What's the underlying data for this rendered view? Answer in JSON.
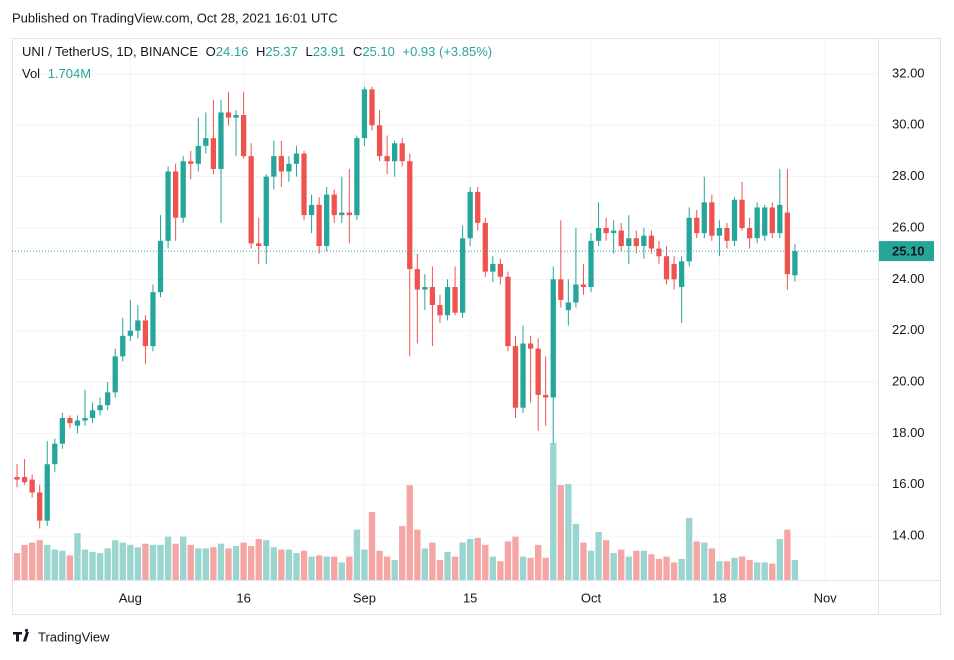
{
  "page": {
    "published": "Published on TradingView.com, Oct 28, 2021 16:01 UTC",
    "brand": "TradingView"
  },
  "chart_data": {
    "type": "candlestick",
    "legend": {
      "symbol": "UNI / TetherUS, 1D, BINANCE",
      "o": "O",
      "o_value": "24.16",
      "h": "H",
      "h_value": "25.37",
      "l": "L",
      "l_value": "23.91",
      "c": "C",
      "c_value": "25.10",
      "change": "+0.93 (+3.85%)",
      "vol": "Vol",
      "vol_value": "1.704M"
    },
    "last_price_label": "25.10",
    "up_color": "#26a69a",
    "down_color": "#ef5350",
    "up_volume_color": "#9bd5cf",
    "down_volume_color": "#f5a6a4",
    "x": [
      "2021-07-17",
      "2021-07-18",
      "2021-07-19",
      "2021-07-20",
      "2021-07-21",
      "2021-07-22",
      "2021-07-23",
      "2021-07-24",
      "2021-07-25",
      "2021-07-26",
      "2021-07-27",
      "2021-07-28",
      "2021-07-29",
      "2021-07-30",
      "2021-07-31",
      "2021-08-01",
      "2021-08-02",
      "2021-08-03",
      "2021-08-04",
      "2021-08-05",
      "2021-08-06",
      "2021-08-07",
      "2021-08-08",
      "2021-08-09",
      "2021-08-10",
      "2021-08-11",
      "2021-08-12",
      "2021-08-13",
      "2021-08-14",
      "2021-08-15",
      "2021-08-16",
      "2021-08-17",
      "2021-08-18",
      "2021-08-19",
      "2021-08-20",
      "2021-08-21",
      "2021-08-22",
      "2021-08-23",
      "2021-08-24",
      "2021-08-25",
      "2021-08-26",
      "2021-08-27",
      "2021-08-28",
      "2021-08-29",
      "2021-08-30",
      "2021-08-31",
      "2021-09-01",
      "2021-09-02",
      "2021-09-03",
      "2021-09-04",
      "2021-09-05",
      "2021-09-06",
      "2021-09-07",
      "2021-09-08",
      "2021-09-09",
      "2021-09-10",
      "2021-09-11",
      "2021-09-12",
      "2021-09-13",
      "2021-09-14",
      "2021-09-15",
      "2021-09-16",
      "2021-09-17",
      "2021-09-18",
      "2021-09-19",
      "2021-09-20",
      "2021-09-21",
      "2021-09-22",
      "2021-09-23",
      "2021-09-24",
      "2021-09-25",
      "2021-09-26",
      "2021-09-27",
      "2021-09-28",
      "2021-09-29",
      "2021-09-30",
      "2021-10-01",
      "2021-10-02",
      "2021-10-03",
      "2021-10-04",
      "2021-10-05",
      "2021-10-06",
      "2021-10-07",
      "2021-10-08",
      "2021-10-09",
      "2021-10-10",
      "2021-10-11",
      "2021-10-12",
      "2021-10-13",
      "2021-10-14",
      "2021-10-15",
      "2021-10-16",
      "2021-10-17",
      "2021-10-18",
      "2021-10-19",
      "2021-10-20",
      "2021-10-21",
      "2021-10-22",
      "2021-10-23",
      "2021-10-24",
      "2021-10-25",
      "2021-10-26",
      "2021-10-27",
      "2021-10-28"
    ],
    "open": [
      16.3,
      16.3,
      16.2,
      15.7,
      14.6,
      16.8,
      17.6,
      18.6,
      18.3,
      18.5,
      18.6,
      18.9,
      19.1,
      19.6,
      21.0,
      21.8,
      22.0,
      22.4,
      21.4,
      23.5,
      25.5,
      28.2,
      26.4,
      28.6,
      28.5,
      29.2,
      29.5,
      28.3,
      30.5,
      30.3,
      30.4,
      28.8,
      25.4,
      25.3,
      28.0,
      28.8,
      28.2,
      28.5,
      28.9,
      26.5,
      26.9,
      25.3,
      27.3,
      26.5,
      26.6,
      26.5,
      29.5,
      31.4,
      30.0,
      28.8,
      28.6,
      29.3,
      28.6,
      24.4,
      23.6,
      23.7,
      23.0,
      22.6,
      23.7,
      22.7,
      25.6,
      27.4,
      26.2,
      24.3,
      24.6,
      24.1,
      21.4,
      19.0,
      21.5,
      21.3,
      19.5,
      19.4,
      24.0,
      22.8,
      23.1,
      23.8,
      23.7,
      25.5,
      26.0,
      25.8,
      25.9,
      25.3,
      25.6,
      25.3,
      25.7,
      25.2,
      24.9,
      24.6,
      23.7,
      24.7,
      26.4,
      25.8,
      27.0,
      25.7,
      26.0,
      25.5,
      27.1,
      26.0,
      25.6,
      25.7,
      26.8,
      25.8,
      26.6,
      24.16
    ],
    "high": [
      16.8,
      17.0,
      16.4,
      16.0,
      17.7,
      17.8,
      18.8,
      18.7,
      18.7,
      19.7,
      19.2,
      19.4,
      20.0,
      21.3,
      22.5,
      23.2,
      23.0,
      22.6,
      23.8,
      26.5,
      28.4,
      28.5,
      28.8,
      29.0,
      30.3,
      30.5,
      31.0,
      31.0,
      31.3,
      30.6,
      31.3,
      29.3,
      26.4,
      28.1,
      29.4,
      29.4,
      28.8,
      29.2,
      29.0,
      27.3,
      27.2,
      27.6,
      27.5,
      28.0,
      28.3,
      29.6,
      31.5,
      31.5,
      30.6,
      29.6,
      29.4,
      29.5,
      28.9,
      25.0,
      24.2,
      24.5,
      23.4,
      24.0,
      24.5,
      26.1,
      27.6,
      27.6,
      26.4,
      24.9,
      24.8,
      24.3,
      21.8,
      22.2,
      21.8,
      21.7,
      21.0,
      24.5,
      26.3,
      24.0,
      26.0,
      24.6,
      25.8,
      27.0,
      26.4,
      26.3,
      26.2,
      26.5,
      25.9,
      26.0,
      25.9,
      25.5,
      25.3,
      24.9,
      24.9,
      26.8,
      26.7,
      28.0,
      27.3,
      26.3,
      26.2,
      27.2,
      27.8,
      26.4,
      27.0,
      26.9,
      27.0,
      28.3,
      28.3,
      25.37
    ],
    "low": [
      15.9,
      16.0,
      15.5,
      14.3,
      14.4,
      16.5,
      17.4,
      18.2,
      18.0,
      18.3,
      18.4,
      18.7,
      18.9,
      19.4,
      20.8,
      21.6,
      21.7,
      20.7,
      21.2,
      23.3,
      25.2,
      25.5,
      26.2,
      27.9,
      28.2,
      28.9,
      28.1,
      26.2,
      30.0,
      28.8,
      28.7,
      25.2,
      24.6,
      24.6,
      27.5,
      27.6,
      27.8,
      28.0,
      26.3,
      25.8,
      25.0,
      25.1,
      26.2,
      26.2,
      25.4,
      26.3,
      29.2,
      29.8,
      28.6,
      28.1,
      28.0,
      28.4,
      21.0,
      21.5,
      22.8,
      21.4,
      22.3,
      22.4,
      22.6,
      22.5,
      25.3,
      25.9,
      24.1,
      23.9,
      23.8,
      21.2,
      18.6,
      18.8,
      19.2,
      18.1,
      18.3,
      17.6,
      22.9,
      22.2,
      22.9,
      23.4,
      23.5,
      25.3,
      25.5,
      25.0,
      25.1,
      24.6,
      25.0,
      24.8,
      25.0,
      24.6,
      23.8,
      23.6,
      22.3,
      24.5,
      25.6,
      25.6,
      25.5,
      24.9,
      25.2,
      25.3,
      25.9,
      25.2,
      25.4,
      25.5,
      25.6,
      25.6,
      23.6,
      23.91
    ],
    "close": [
      16.2,
      16.1,
      15.7,
      14.6,
      16.8,
      17.6,
      18.6,
      18.4,
      18.5,
      18.6,
      18.9,
      19.1,
      19.6,
      21.0,
      21.8,
      22.0,
      22.4,
      21.4,
      23.5,
      25.5,
      28.2,
      26.4,
      28.6,
      28.5,
      29.2,
      29.5,
      28.3,
      30.5,
      30.3,
      30.4,
      28.8,
      25.4,
      25.3,
      28.0,
      28.8,
      28.2,
      28.5,
      28.9,
      26.5,
      26.9,
      25.3,
      27.3,
      26.5,
      26.6,
      26.5,
      29.5,
      31.4,
      30.0,
      28.8,
      28.6,
      29.3,
      28.6,
      24.4,
      23.6,
      23.7,
      23.0,
      22.6,
      23.7,
      22.7,
      25.6,
      27.4,
      26.2,
      24.3,
      24.6,
      24.1,
      21.4,
      19.0,
      21.5,
      21.3,
      19.5,
      19.4,
      24.0,
      23.2,
      23.1,
      23.8,
      23.7,
      25.5,
      26.0,
      25.8,
      25.9,
      25.3,
      25.6,
      25.3,
      25.7,
      25.2,
      24.9,
      24.0,
      24.0,
      24.7,
      26.4,
      25.8,
      27.0,
      25.7,
      26.0,
      25.5,
      27.1,
      26.0,
      25.6,
      26.8,
      26.8,
      25.8,
      26.9,
      24.2,
      25.1
    ],
    "volume": [
      2.3,
      3.0,
      3.2,
      3.4,
      3.0,
      2.6,
      2.5,
      2.1,
      4.0,
      2.6,
      2.4,
      2.3,
      2.7,
      3.4,
      3.2,
      3.0,
      2.8,
      3.1,
      3.0,
      3.0,
      3.7,
      3.1,
      3.7,
      3.0,
      2.7,
      2.7,
      2.8,
      3.1,
      2.7,
      2.9,
      3.2,
      2.9,
      3.5,
      3.4,
      2.8,
      2.6,
      2.6,
      2.3,
      2.5,
      2.0,
      2.1,
      2.0,
      2.0,
      1.5,
      2.0,
      4.3,
      2.6,
      5.8,
      2.5,
      2.0,
      1.7,
      4.6,
      8.1,
      4.3,
      2.7,
      3.2,
      1.7,
      2.4,
      2.0,
      3.2,
      3.5,
      3.6,
      3.0,
      2.0,
      1.6,
      3.3,
      3.7,
      2.0,
      1.9,
      3.0,
      1.9,
      11.7,
      8.1,
      8.2,
      4.8,
      3.2,
      2.5,
      4.1,
      3.4,
      2.3,
      2.6,
      2.0,
      2.5,
      2.5,
      2.2,
      1.8,
      2.0,
      1.5,
      1.8,
      5.3,
      3.3,
      3.2,
      2.7,
      1.6,
      1.6,
      1.9,
      2.0,
      1.7,
      1.5,
      1.5,
      1.4,
      3.5,
      4.3,
      1.704
    ],
    "xlim": [
      "2021-07-16T08:00:00Z",
      "2021-11-08T00:00:00Z"
    ],
    "xticks": [
      {
        "value": "2021-08-01",
        "label": "Aug"
      },
      {
        "value": "2021-08-16",
        "label": "16"
      },
      {
        "value": "2021-09-01",
        "label": "Sep"
      },
      {
        "value": "2021-09-15",
        "label": "15"
      },
      {
        "value": "2021-10-01",
        "label": "Oct"
      },
      {
        "value": "2021-10-18",
        "label": "18"
      },
      {
        "value": "2021-11-01",
        "label": "Nov"
      }
    ],
    "ylim": [
      12.29,
      33.4
    ],
    "yticks": [
      {
        "value": 14,
        "label": "14.00"
      },
      {
        "value": 16,
        "label": "16.00"
      },
      {
        "value": 18,
        "label": "18.00"
      },
      {
        "value": 20,
        "label": "20.00"
      },
      {
        "value": 22,
        "label": "22.00"
      },
      {
        "value": 24,
        "label": "24.00"
      },
      {
        "value": 26,
        "label": "26.00"
      },
      {
        "value": 28,
        "label": "28.00"
      },
      {
        "value": 30,
        "label": "30.00"
      },
      {
        "value": 32,
        "label": "32.00"
      }
    ],
    "grid": true
  }
}
